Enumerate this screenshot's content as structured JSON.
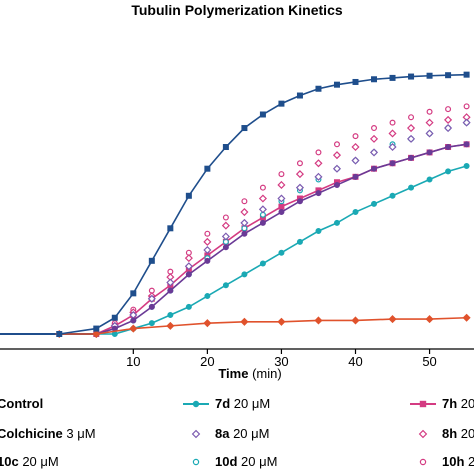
{
  "chart_data": {
    "type": "line",
    "title": "Tubulin Polymerization Kinetics",
    "xlabel": "Time",
    "xlabel_unit": "(min)",
    "ylabel": "",
    "xlim": [
      -8,
      56
    ],
    "ylim": [
      0,
      1.0
    ],
    "x_ticks": [
      "10",
      "20",
      "30",
      "40",
      "50"
    ],
    "x_tick_values": [
      10,
      20,
      30,
      40,
      50
    ],
    "grid": false,
    "legend_placement": "bottom",
    "series": [
      {
        "key": "control",
        "compound": "Control",
        "conc": "",
        "color": "#1f4e8c",
        "marker": "square",
        "filled": true,
        "x": [
          0,
          5,
          7.5,
          10,
          12.5,
          15,
          17.5,
          20,
          22.5,
          25,
          27.5,
          30,
          32.5,
          35,
          37.5,
          40,
          42.5,
          45,
          47.5,
          50,
          52.5,
          55
        ],
        "y": [
          0.0,
          0.02,
          0.06,
          0.15,
          0.27,
          0.39,
          0.51,
          0.61,
          0.69,
          0.76,
          0.81,
          0.85,
          0.88,
          0.905,
          0.92,
          0.93,
          0.94,
          0.945,
          0.95,
          0.953,
          0.955,
          0.957
        ]
      },
      {
        "key": "colchicine",
        "compound": "Colchicine",
        "conc": "3 μM",
        "color": "#e0522c",
        "marker": "diamond",
        "filled": true,
        "x": [
          0,
          5,
          10,
          15,
          20,
          25,
          30,
          35,
          40,
          45,
          50,
          55
        ],
        "y": [
          0.0,
          0.0,
          0.02,
          0.03,
          0.04,
          0.045,
          0.045,
          0.05,
          0.05,
          0.055,
          0.055,
          0.06
        ]
      },
      {
        "key": "10c",
        "compound": "10c",
        "conc": "20 μM",
        "color": "#6a3a96",
        "marker": "circle",
        "filled": true,
        "x": [
          5,
          7.5,
          10,
          12.5,
          15,
          17.5,
          20,
          22.5,
          25,
          27.5,
          30,
          32.5,
          35,
          37.5,
          40,
          42.5,
          45,
          47.5,
          50,
          52.5,
          55
        ],
        "y": [
          0.0,
          0.02,
          0.05,
          0.1,
          0.16,
          0.22,
          0.27,
          0.32,
          0.37,
          0.41,
          0.45,
          0.49,
          0.52,
          0.55,
          0.58,
          0.61,
          0.63,
          0.65,
          0.67,
          0.69,
          0.7
        ]
      },
      {
        "key": "7d",
        "compound": "7d",
        "conc": "20 μM",
        "color": "#1aa9b4",
        "marker": "circle",
        "filled": true,
        "x": [
          5,
          7.5,
          10,
          12.5,
          15,
          17.5,
          20,
          22.5,
          25,
          27.5,
          30,
          32.5,
          35,
          37.5,
          40,
          42.5,
          45,
          47.5,
          50,
          52.5,
          55
        ],
        "y": [
          0.0,
          0.0,
          0.02,
          0.04,
          0.07,
          0.1,
          0.14,
          0.18,
          0.22,
          0.26,
          0.3,
          0.34,
          0.38,
          0.41,
          0.45,
          0.48,
          0.51,
          0.54,
          0.57,
          0.6,
          0.62
        ]
      },
      {
        "key": "8a",
        "compound": "8a",
        "conc": "20 μM",
        "color": "#7c5bb0",
        "marker": "diamond",
        "filled": false,
        "x": [
          5,
          7.5,
          10,
          12.5,
          15,
          17.5,
          20,
          22.5,
          25,
          27.5,
          30,
          32.5,
          35,
          37.5,
          40,
          42.5,
          45,
          47.5,
          50,
          52.5,
          55
        ],
        "y": [
          0.0,
          0.03,
          0.07,
          0.13,
          0.19,
          0.25,
          0.31,
          0.36,
          0.41,
          0.46,
          0.5,
          0.54,
          0.58,
          0.61,
          0.64,
          0.67,
          0.69,
          0.72,
          0.74,
          0.76,
          0.78
        ]
      },
      {
        "key": "10d",
        "compound": "10d",
        "conc": "20 μM",
        "color": "#1aa9b4",
        "marker": "circle",
        "filled": false,
        "x": [
          5,
          7.5,
          10,
          12.5,
          15,
          17.5,
          20,
          22.5,
          25,
          27.5,
          30,
          32.5,
          35,
          37.5,
          40,
          42.5,
          45,
          47.5,
          50,
          52.5,
          55
        ],
        "y": [
          0.0,
          0.02,
          0.05,
          0.1,
          0.16,
          0.22,
          0.28,
          0.34,
          0.39,
          0.44,
          0.49,
          0.53,
          0.57,
          0.61,
          0.64,
          0.67,
          0.7,
          0.72,
          0.74,
          0.76,
          0.78
        ]
      },
      {
        "key": "7h",
        "compound": "7h",
        "conc": "20",
        "color": "#d43b82",
        "marker": "square",
        "filled": true,
        "x": [
          5,
          7.5,
          10,
          12.5,
          15,
          17.5,
          20,
          22.5,
          25,
          27.5,
          30,
          32.5,
          35,
          37.5,
          40,
          42.5,
          45,
          47.5,
          50,
          52.5,
          55
        ],
        "y": [
          0.0,
          0.03,
          0.07,
          0.13,
          0.18,
          0.24,
          0.29,
          0.34,
          0.39,
          0.43,
          0.47,
          0.5,
          0.53,
          0.56,
          0.58,
          0.61,
          0.63,
          0.65,
          0.67,
          0.69,
          0.7
        ]
      },
      {
        "key": "8h",
        "compound": "8h",
        "conc": "20",
        "color": "#d43b82",
        "marker": "diamond",
        "filled": false,
        "x": [
          5,
          7.5,
          10,
          12.5,
          15,
          17.5,
          20,
          22.5,
          25,
          27.5,
          30,
          32.5,
          35,
          37.5,
          40,
          42.5,
          45,
          47.5,
          50,
          52.5,
          55
        ],
        "y": [
          0.0,
          0.03,
          0.08,
          0.14,
          0.21,
          0.28,
          0.34,
          0.4,
          0.45,
          0.5,
          0.55,
          0.59,
          0.63,
          0.66,
          0.69,
          0.72,
          0.74,
          0.76,
          0.78,
          0.79,
          0.8
        ]
      },
      {
        "key": "10h",
        "compound": "10h",
        "conc": "2",
        "color": "#d43b82",
        "marker": "circle",
        "filled": false,
        "x": [
          5,
          7.5,
          10,
          12.5,
          15,
          17.5,
          20,
          22.5,
          25,
          27.5,
          30,
          32.5,
          35,
          37.5,
          40,
          42.5,
          45,
          47.5,
          50,
          52.5,
          55
        ],
        "y": [
          0.0,
          0.04,
          0.09,
          0.16,
          0.23,
          0.3,
          0.37,
          0.43,
          0.49,
          0.54,
          0.59,
          0.63,
          0.67,
          0.7,
          0.73,
          0.76,
          0.78,
          0.8,
          0.82,
          0.83,
          0.84
        ]
      }
    ]
  }
}
